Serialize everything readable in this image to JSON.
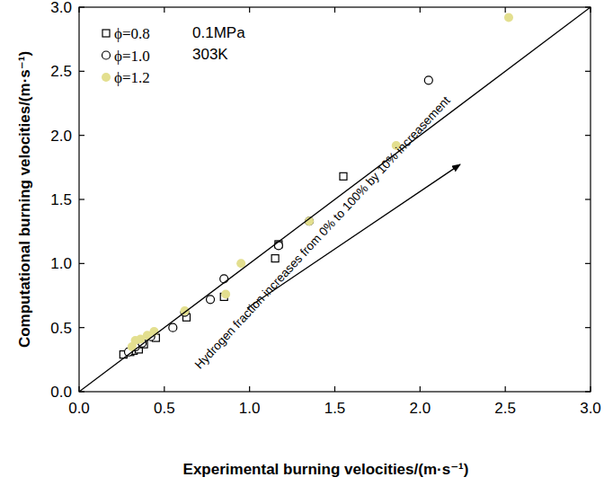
{
  "chart_data": {
    "type": "scatter",
    "xlabel": "Experimental burning velocities/(m·s⁻¹)",
    "ylabel": "Computational burning velocities/(m·s⁻¹)",
    "xlim": [
      0,
      3
    ],
    "ylim": [
      0,
      3
    ],
    "xticks": [
      {
        "value": 0,
        "label": "0.0"
      },
      {
        "value": 0.5,
        "label": "0.5"
      },
      {
        "value": 1,
        "label": "1.0"
      },
      {
        "value": 1.5,
        "label": "1.5"
      },
      {
        "value": 2,
        "label": "2.0"
      },
      {
        "value": 2.5,
        "label": "2.5"
      },
      {
        "value": 3,
        "label": "3.0"
      }
    ],
    "yticks": [
      {
        "value": 0,
        "label": "0.0"
      },
      {
        "value": 0.5,
        "label": "0.5"
      },
      {
        "value": 1,
        "label": "1.0"
      },
      {
        "value": 1.5,
        "label": "1.5"
      },
      {
        "value": 2,
        "label": "2.0"
      },
      {
        "value": 2.5,
        "label": "2.5"
      },
      {
        "value": 3,
        "label": "3.0"
      }
    ],
    "legend": "upper left",
    "annotations": [
      "0.1MPa",
      "303K",
      "Hydrogen fraction increases from 0% to 100% by 10% increasement"
    ],
    "series": [
      {
        "name": "ϕ=0.8",
        "color": "#000000",
        "marker": "open_square",
        "x": [
          0.26,
          0.3,
          0.32,
          0.35,
          0.38,
          0.45,
          0.63,
          0.85,
          1.15,
          1.17,
          1.55
        ],
        "values": [
          0.29,
          0.31,
          0.32,
          0.33,
          0.37,
          0.42,
          0.58,
          0.74,
          1.04,
          1.15,
          1.68
        ]
      },
      {
        "name": "ϕ=1.0",
        "color": "#000000",
        "marker": "open_circle",
        "x": [
          0.29,
          0.33,
          0.37,
          0.42,
          0.55,
          0.62,
          0.77,
          0.85,
          1.17,
          1.35,
          2.05
        ],
        "values": [
          0.31,
          0.35,
          0.38,
          0.43,
          0.5,
          0.62,
          0.72,
          0.88,
          1.14,
          1.33,
          2.43
        ]
      },
      {
        "name": "ϕ=1.2",
        "color": "#e3df8f",
        "marker": "filled_circle",
        "x": [
          0.31,
          0.33,
          0.36,
          0.4,
          0.44,
          0.62,
          0.86,
          0.95,
          1.35,
          1.86,
          2.52
        ],
        "values": [
          0.35,
          0.4,
          0.41,
          0.44,
          0.47,
          0.63,
          0.76,
          1.0,
          1.33,
          1.92,
          2.92
        ]
      },
      {
        "type": "line",
        "color": "#000000",
        "x": [
          0,
          3
        ],
        "values": [
          0,
          3
        ]
      }
    ]
  }
}
